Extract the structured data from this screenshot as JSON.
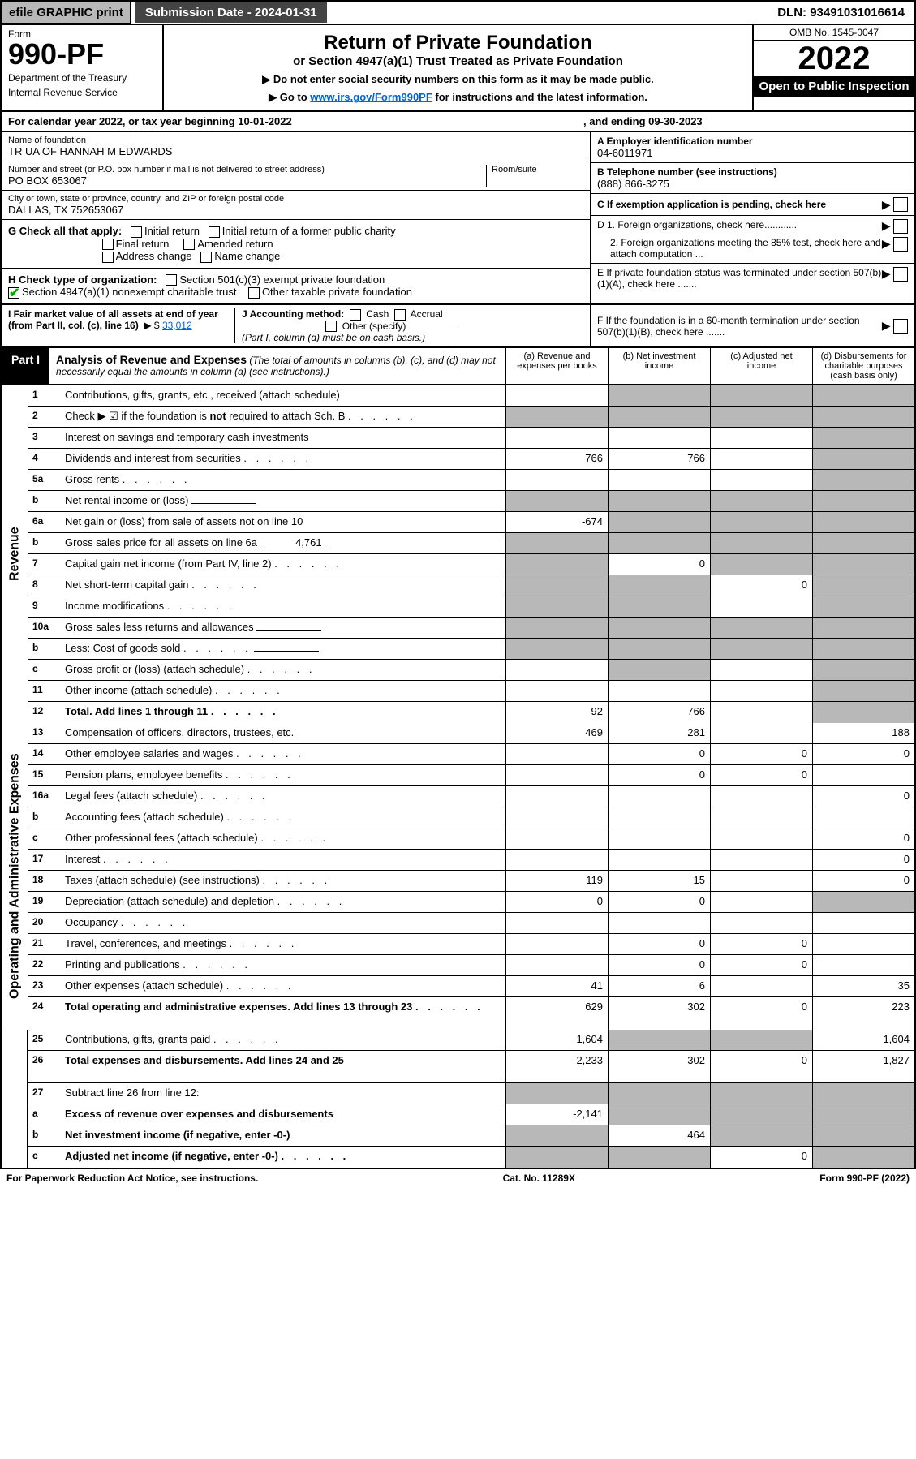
{
  "topbar": {
    "efile": "efile GRAPHIC print",
    "submission_label": "Submission Date - 2024-01-31",
    "dln": "DLN: 93491031016614"
  },
  "header": {
    "form_label": "Form",
    "form_number": "990-PF",
    "dept1": "Department of the Treasury",
    "dept2": "Internal Revenue Service",
    "title": "Return of Private Foundation",
    "subtitle": "or Section 4947(a)(1) Trust Treated as Private Foundation",
    "note1": "▶ Do not enter social security numbers on this form as it may be made public.",
    "note2_pre": "▶ Go to ",
    "note2_link": "www.irs.gov/Form990PF",
    "note2_post": " for instructions and the latest information.",
    "omb": "OMB No. 1545-0047",
    "year": "2022",
    "inspection": "Open to Public Inspection"
  },
  "calyear": {
    "text": "For calendar year 2022, or tax year beginning 10-01-2022",
    "ending": ", and ending 09-30-2023"
  },
  "info": {
    "name_label": "Name of foundation",
    "name": "TR UA OF HANNAH M EDWARDS",
    "addr_label": "Number and street (or P.O. box number if mail is not delivered to street address)",
    "addr": "PO BOX 653067",
    "room_label": "Room/suite",
    "city_label": "City or town, state or province, country, and ZIP or foreign postal code",
    "city": "DALLAS, TX  752653067",
    "a_label": "A Employer identification number",
    "a_val": "04-6011971",
    "b_label": "B Telephone number (see instructions)",
    "b_val": "(888) 866-3275",
    "c_label": "C If exemption application is pending, check here",
    "d1_label": "D 1. Foreign organizations, check here............",
    "d2_label": "2. Foreign organizations meeting the 85% test, check here and attach computation ...",
    "e_label": "E  If private foundation status was terminated under section 507(b)(1)(A), check here .......",
    "f_label": "F  If the foundation is in a 60-month termination under section 507(b)(1)(B), check here .......",
    "g_label": "G Check all that apply:",
    "g_opts": [
      "Initial return",
      "Initial return of a former public charity",
      "Final return",
      "Amended return",
      "Address change",
      "Name change"
    ],
    "h_label": "H Check type of organization:",
    "h_opt1": "Section 501(c)(3) exempt private foundation",
    "h_opt2": "Section 4947(a)(1) nonexempt charitable trust",
    "h_opt3": "Other taxable private foundation",
    "i_label": "I Fair market value of all assets at end of year (from Part II, col. (c), line 16)",
    "i_val": "33,012",
    "j_label": "J Accounting method:",
    "j_opts": [
      "Cash",
      "Accrual",
      "Other (specify)"
    ],
    "j_note": "(Part I, column (d) must be on cash basis.)"
  },
  "part1": {
    "label": "Part I",
    "title": "Analysis of Revenue and Expenses",
    "note": "(The total of amounts in columns (b), (c), and (d) may not necessarily equal the amounts in column (a) (see instructions).)",
    "cols": {
      "a": "(a)   Revenue and expenses per books",
      "b": "(b)   Net investment income",
      "c": "(c)   Adjusted net income",
      "d": "(d)   Disbursements for charitable purposes (cash basis only)"
    }
  },
  "side_labels": {
    "revenue": "Revenue",
    "expenses": "Operating and Administrative Expenses"
  },
  "lines": [
    {
      "n": "1",
      "desc": "Contributions, gifts, grants, etc., received (attach schedule)",
      "a": "",
      "b": "g",
      "c": "g",
      "d": "g"
    },
    {
      "n": "2",
      "desc": "Check ▶ ☑ if the foundation is not required to attach Sch. B",
      "dots": true,
      "a": "g",
      "b": "g",
      "c": "g",
      "d": "g",
      "bold_not": true
    },
    {
      "n": "3",
      "desc": "Interest on savings and temporary cash investments",
      "a": "",
      "b": "",
      "c": "",
      "d": "g"
    },
    {
      "n": "4",
      "desc": "Dividends and interest from securities",
      "dots": true,
      "a": "766",
      "b": "766",
      "c": "",
      "d": "g"
    },
    {
      "n": "5a",
      "desc": "Gross rents",
      "dots": true,
      "a": "",
      "b": "",
      "c": "",
      "d": "g"
    },
    {
      "n": "b",
      "desc": "Net rental income or (loss)",
      "inline": "",
      "a": "g",
      "b": "g",
      "c": "g",
      "d": "g"
    },
    {
      "n": "6a",
      "desc": "Net gain or (loss) from sale of assets not on line 10",
      "a": "-674",
      "b": "g",
      "c": "g",
      "d": "g"
    },
    {
      "n": "b",
      "desc": "Gross sales price for all assets on line 6a",
      "inline": "4,761",
      "a": "g",
      "b": "g",
      "c": "g",
      "d": "g"
    },
    {
      "n": "7",
      "desc": "Capital gain net income (from Part IV, line 2)",
      "dots": true,
      "a": "g",
      "b": "0",
      "c": "g",
      "d": "g"
    },
    {
      "n": "8",
      "desc": "Net short-term capital gain",
      "dots": true,
      "a": "g",
      "b": "g",
      "c": "0",
      "d": "g"
    },
    {
      "n": "9",
      "desc": "Income modifications",
      "dots": true,
      "a": "g",
      "b": "g",
      "c": "",
      "d": "g"
    },
    {
      "n": "10a",
      "desc": "Gross sales less returns and allowances",
      "inline": "",
      "a": "g",
      "b": "g",
      "c": "g",
      "d": "g"
    },
    {
      "n": "b",
      "desc": "Less: Cost of goods sold",
      "dots": true,
      "inline": "",
      "a": "g",
      "b": "g",
      "c": "g",
      "d": "g"
    },
    {
      "n": "c",
      "desc": "Gross profit or (loss) (attach schedule)",
      "dots": true,
      "a": "",
      "b": "g",
      "c": "",
      "d": "g"
    },
    {
      "n": "11",
      "desc": "Other income (attach schedule)",
      "dots": true,
      "a": "",
      "b": "",
      "c": "",
      "d": "g"
    },
    {
      "n": "12",
      "desc": "Total. Add lines 1 through 11",
      "dots": true,
      "bold": true,
      "a": "92",
      "b": "766",
      "c": "",
      "d": "g"
    },
    {
      "n": "13",
      "desc": "Compensation of officers, directors, trustees, etc.",
      "a": "469",
      "b": "281",
      "c": "",
      "d": "188"
    },
    {
      "n": "14",
      "desc": "Other employee salaries and wages",
      "dots": true,
      "a": "",
      "b": "0",
      "c": "0",
      "d": "0"
    },
    {
      "n": "15",
      "desc": "Pension plans, employee benefits",
      "dots": true,
      "a": "",
      "b": "0",
      "c": "0",
      "d": ""
    },
    {
      "n": "16a",
      "desc": "Legal fees (attach schedule)",
      "dots": true,
      "a": "",
      "b": "",
      "c": "",
      "d": "0"
    },
    {
      "n": "b",
      "desc": "Accounting fees (attach schedule)",
      "dots": true,
      "a": "",
      "b": "",
      "c": "",
      "d": ""
    },
    {
      "n": "c",
      "desc": "Other professional fees (attach schedule)",
      "dots": true,
      "a": "",
      "b": "",
      "c": "",
      "d": "0"
    },
    {
      "n": "17",
      "desc": "Interest",
      "dots": true,
      "a": "",
      "b": "",
      "c": "",
      "d": "0"
    },
    {
      "n": "18",
      "desc": "Taxes (attach schedule) (see instructions)",
      "dots": true,
      "a": "119",
      "b": "15",
      "c": "",
      "d": "0"
    },
    {
      "n": "19",
      "desc": "Depreciation (attach schedule) and depletion",
      "dots": true,
      "a": "0",
      "b": "0",
      "c": "",
      "d": "g"
    },
    {
      "n": "20",
      "desc": "Occupancy",
      "dots": true,
      "a": "",
      "b": "",
      "c": "",
      "d": ""
    },
    {
      "n": "21",
      "desc": "Travel, conferences, and meetings",
      "dots": true,
      "a": "",
      "b": "0",
      "c": "0",
      "d": ""
    },
    {
      "n": "22",
      "desc": "Printing and publications",
      "dots": true,
      "a": "",
      "b": "0",
      "c": "0",
      "d": ""
    },
    {
      "n": "23",
      "desc": "Other expenses (attach schedule)",
      "dots": true,
      "a": "41",
      "b": "6",
      "c": "",
      "d": "35"
    },
    {
      "n": "24",
      "desc": "Total operating and administrative expenses. Add lines 13 through 23",
      "dots": true,
      "bold": true,
      "a": "629",
      "b": "302",
      "c": "0",
      "d": "223",
      "tall": true
    },
    {
      "n": "25",
      "desc": "Contributions, gifts, grants paid",
      "dots": true,
      "a": "1,604",
      "b": "g",
      "c": "g",
      "d": "1,604"
    },
    {
      "n": "26",
      "desc": "Total expenses and disbursements. Add lines 24 and 25",
      "bold": true,
      "a": "2,233",
      "b": "302",
      "c": "0",
      "d": "1,827",
      "tall": true
    },
    {
      "n": "27",
      "desc": "Subtract line 26 from line 12:",
      "a": "g",
      "b": "g",
      "c": "g",
      "d": "g"
    },
    {
      "n": "a",
      "desc": "Excess of revenue over expenses and disbursements",
      "bold": true,
      "a": "-2,141",
      "b": "g",
      "c": "g",
      "d": "g"
    },
    {
      "n": "b",
      "desc": "Net investment income (if negative, enter -0-)",
      "bold": true,
      "a": "g",
      "b": "464",
      "c": "g",
      "d": "g"
    },
    {
      "n": "c",
      "desc": "Adjusted net income (if negative, enter -0-)",
      "dots": true,
      "bold": true,
      "a": "g",
      "b": "g",
      "c": "0",
      "d": "g"
    }
  ],
  "footer": {
    "left": "For Paperwork Reduction Act Notice, see instructions.",
    "mid": "Cat. No. 11289X",
    "right": "Form 990-PF (2022)"
  }
}
